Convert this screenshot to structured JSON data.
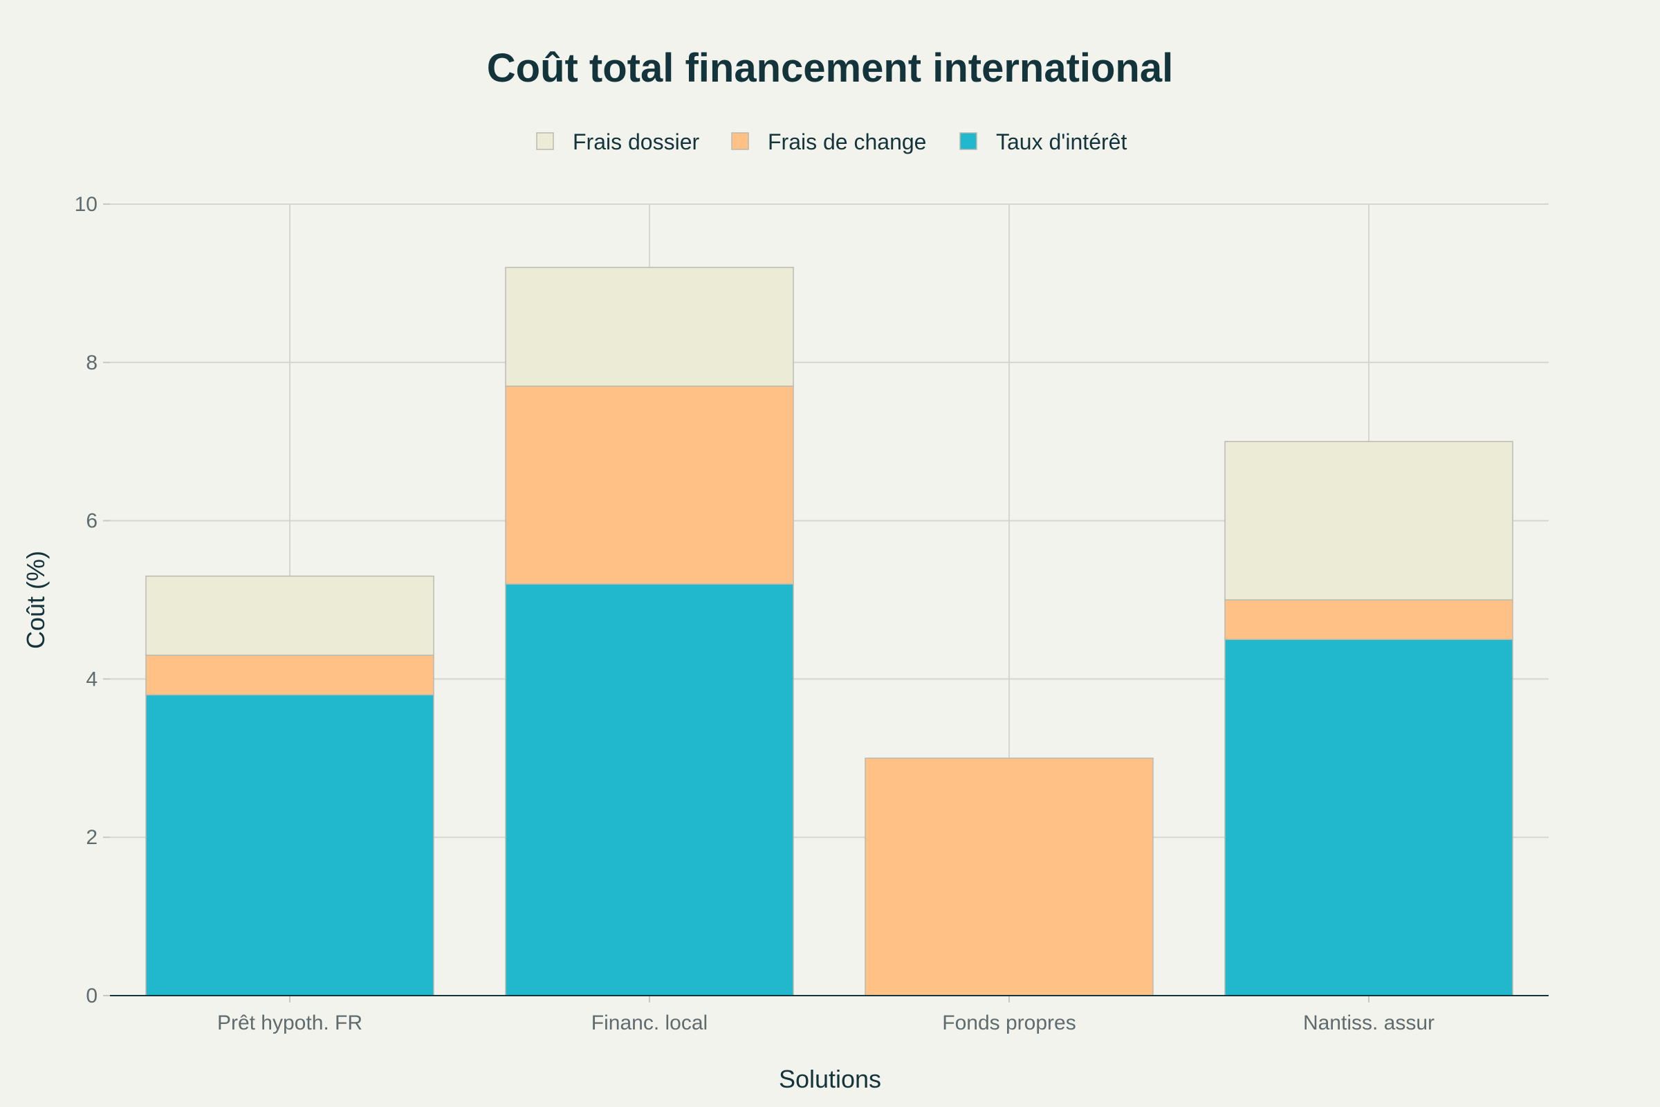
{
  "chart_data": {
    "type": "bar",
    "stacked": true,
    "title": "Coût total financement international",
    "xlabel": "Solutions",
    "ylabel": "Coût (%)",
    "ylim": [
      0,
      10
    ],
    "yticks": [
      0,
      2,
      4,
      6,
      8,
      10
    ],
    "grid": true,
    "legend_position": "top",
    "categories": [
      "Prêt hypoth. FR",
      "Financ. local",
      "Fonds propres",
      "Nantiss. assur"
    ],
    "series": [
      {
        "name": "Taux d'intérêt",
        "values": [
          3.8,
          5.2,
          0,
          4.5
        ],
        "color": "#21B8CD"
      },
      {
        "name": "Frais de change",
        "values": [
          0.5,
          2.5,
          3.0,
          0.5
        ],
        "color": "#FFC185"
      },
      {
        "name": "Frais dossier",
        "values": [
          1.0,
          1.5,
          0,
          2.0
        ],
        "color": "#ECEBD5"
      }
    ],
    "legend_order": [
      "Frais dossier",
      "Frais de change",
      "Taux d'intérêt"
    ]
  }
}
